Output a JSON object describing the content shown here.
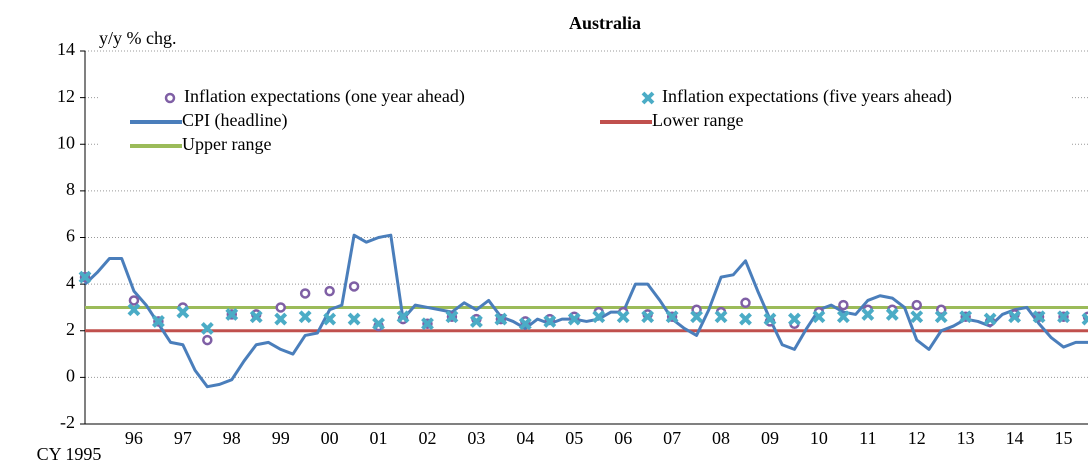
{
  "chart_data": {
    "type": "line",
    "title": "Australia",
    "y_label": "y/y % chg.",
    "xlim": [
      1995,
      2015.5
    ],
    "ylim": [
      -2,
      14
    ],
    "grid": true,
    "yticks": [
      -2,
      0,
      2,
      4,
      6,
      8,
      10,
      12,
      14
    ],
    "xticks": [
      {
        "value": 1995,
        "label": "CY 1995"
      },
      {
        "value": 1996,
        "label": "96"
      },
      {
        "value": 1997,
        "label": "97"
      },
      {
        "value": 1998,
        "label": "98"
      },
      {
        "value": 1999,
        "label": "99"
      },
      {
        "value": 2000,
        "label": "00"
      },
      {
        "value": 2001,
        "label": "01"
      },
      {
        "value": 2002,
        "label": "02"
      },
      {
        "value": 2003,
        "label": "03"
      },
      {
        "value": 2004,
        "label": "04"
      },
      {
        "value": 2005,
        "label": "05"
      },
      {
        "value": 2006,
        "label": "06"
      },
      {
        "value": 2007,
        "label": "07"
      },
      {
        "value": 2008,
        "label": "08"
      },
      {
        "value": 2009,
        "label": "09"
      },
      {
        "value": 2010,
        "label": "10"
      },
      {
        "value": 2011,
        "label": "11"
      },
      {
        "value": 2012,
        "label": "12"
      },
      {
        "value": 2013,
        "label": "13"
      },
      {
        "value": 2014,
        "label": "14"
      },
      {
        "value": 2015,
        "label": "15"
      }
    ],
    "series": [
      {
        "name": "Lower range",
        "color": "#c0504d",
        "style": "line",
        "x": [
          1995,
          2015.5
        ],
        "values": [
          2,
          2
        ]
      },
      {
        "name": "Upper range",
        "color": "#9bbb59",
        "style": "line",
        "x": [
          1995,
          2015.5
        ],
        "values": [
          3,
          3
        ]
      },
      {
        "name": "CPI (headline)",
        "color": "#4a7ebb",
        "style": "line",
        "x": [
          1995,
          1995.25,
          1995.5,
          1995.75,
          1996,
          1996.25,
          1996.5,
          1996.75,
          1997,
          1997.25,
          1997.5,
          1997.75,
          1998,
          1998.25,
          1998.5,
          1998.75,
          1999,
          1999.25,
          1999.5,
          1999.75,
          2000,
          2000.25,
          2000.5,
          2000.75,
          2001,
          2001.25,
          2001.5,
          2001.75,
          2002,
          2002.25,
          2002.5,
          2002.75,
          2003,
          2003.25,
          2003.5,
          2003.75,
          2004,
          2004.25,
          2004.5,
          2004.75,
          2005,
          2005.25,
          2005.5,
          2005.75,
          2006,
          2006.25,
          2006.5,
          2006.75,
          2007,
          2007.25,
          2007.5,
          2007.75,
          2008,
          2008.25,
          2008.5,
          2008.75,
          2009,
          2009.25,
          2009.5,
          2009.75,
          2010,
          2010.25,
          2010.5,
          2010.75,
          2011,
          2011.25,
          2011.5,
          2011.75,
          2012,
          2012.25,
          2012.5,
          2012.75,
          2013,
          2013.25,
          2013.5,
          2013.75,
          2014,
          2014.25,
          2014.5,
          2014.75,
          2015,
          2015.25,
          2015.5
        ],
        "values": [
          4.0,
          4.5,
          5.1,
          5.1,
          3.7,
          3.1,
          2.3,
          1.5,
          1.4,
          0.3,
          -0.4,
          -0.3,
          -0.1,
          0.7,
          1.4,
          1.5,
          1.2,
          1.0,
          1.8,
          1.9,
          2.9,
          3.1,
          6.1,
          5.8,
          6.0,
          6.1,
          2.5,
          3.1,
          3.0,
          2.9,
          2.8,
          3.2,
          2.9,
          3.3,
          2.6,
          2.4,
          2.1,
          2.5,
          2.3,
          2.5,
          2.5,
          2.4,
          2.5,
          2.8,
          2.8,
          4.0,
          4.0,
          3.3,
          2.5,
          2.1,
          1.8,
          2.9,
          4.3,
          4.4,
          5.0,
          3.7,
          2.5,
          1.4,
          1.2,
          2.1,
          2.9,
          3.1,
          2.8,
          2.7,
          3.3,
          3.5,
          3.4,
          3.0,
          1.6,
          1.2,
          2.0,
          2.2,
          2.5,
          2.4,
          2.2,
          2.7,
          2.9,
          3.0,
          2.3,
          1.7,
          1.3,
          1.5,
          1.5
        ]
      },
      {
        "name": "Inflation expectations (one year ahead)",
        "color": "#7f5fa5",
        "style": "circle",
        "x": [
          1995,
          1996,
          1996.5,
          1997,
          1997.5,
          1998,
          1998.5,
          1999,
          1999.5,
          2000,
          2000.5,
          2001,
          2001.5,
          2002,
          2002.5,
          2003,
          2003.5,
          2004,
          2004.5,
          2005,
          2005.5,
          2006,
          2006.5,
          2007,
          2007.5,
          2008,
          2008.5,
          2009,
          2009.5,
          2010,
          2010.5,
          2011,
          2011.5,
          2012,
          2012.5,
          2013,
          2013.5,
          2014,
          2014.5,
          2015,
          2015.5
        ],
        "values": [
          4.3,
          3.3,
          2.4,
          3.0,
          1.6,
          2.7,
          2.7,
          3.0,
          3.6,
          3.7,
          3.9,
          2.2,
          2.5,
          2.3,
          2.6,
          2.5,
          2.5,
          2.4,
          2.5,
          2.6,
          2.8,
          2.8,
          2.7,
          2.6,
          2.9,
          2.8,
          3.2,
          2.4,
          2.3,
          2.8,
          3.1,
          2.9,
          2.9,
          3.1,
          2.9,
          2.6,
          2.4,
          2.7,
          2.6,
          2.6,
          2.6
        ]
      },
      {
        "name": "Inflation expectations (five years ahead)",
        "color": "#4bacc6",
        "style": "cross",
        "x": [
          1995,
          1996,
          1996.5,
          1997,
          1997.5,
          1998,
          1998.5,
          1999,
          1999.5,
          2000,
          2000.5,
          2001,
          2001.5,
          2002,
          2002.5,
          2003,
          2003.5,
          2004,
          2004.5,
          2005,
          2005.5,
          2006,
          2006.5,
          2007,
          2007.5,
          2008,
          2008.5,
          2009,
          2009.5,
          2010,
          2010.5,
          2011,
          2011.5,
          2012,
          2012.5,
          2013,
          2013.5,
          2014,
          2014.5,
          2015,
          2015.5
        ],
        "values": [
          4.3,
          2.9,
          2.4,
          2.8,
          2.1,
          2.7,
          2.6,
          2.5,
          2.6,
          2.5,
          2.5,
          2.3,
          2.6,
          2.3,
          2.6,
          2.4,
          2.5,
          2.3,
          2.4,
          2.5,
          2.6,
          2.6,
          2.6,
          2.6,
          2.6,
          2.6,
          2.5,
          2.5,
          2.5,
          2.6,
          2.6,
          2.7,
          2.7,
          2.6,
          2.6,
          2.6,
          2.5,
          2.6,
          2.6,
          2.6,
          2.5
        ]
      }
    ]
  }
}
